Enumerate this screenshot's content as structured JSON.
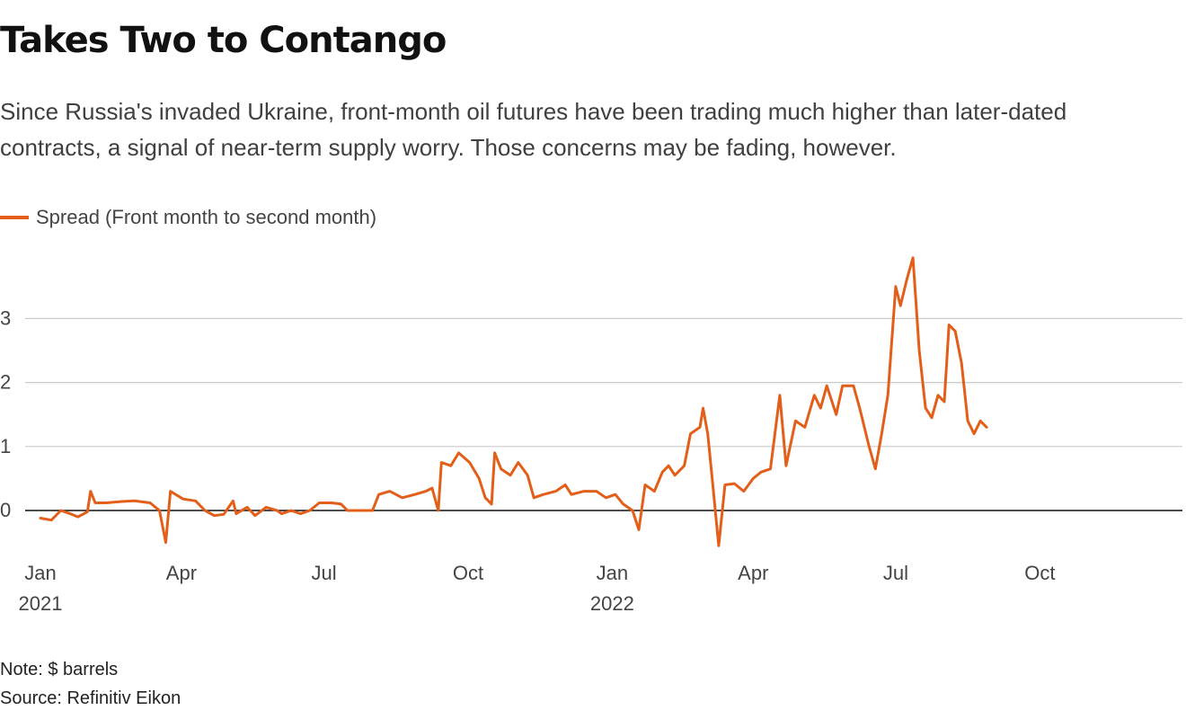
{
  "title": "Takes Two to Contango",
  "subtitle": "Since Russia's invaded Ukraine, front-month oil futures have been trading much higher than later-dated contracts, a signal of near-term supply worry. Those concerns may be fading, however.",
  "note": "Note: $ barrels",
  "source": "Source: Refinitiv Eikon",
  "colors": {
    "line": "#e35f19",
    "grid": "#cccccc",
    "zero": "#111111",
    "text": "#444444"
  },
  "chart_data": {
    "type": "line",
    "title": "Takes Two to Contango",
    "xlabel": "",
    "ylabel": "",
    "ylim": [
      -0.6,
      4.0
    ],
    "xlim": [
      "2021-01-01",
      "2022-12-31"
    ],
    "grid": true,
    "legend_position": "top-left",
    "y_ticks": [
      {
        "value": 0,
        "label": "0"
      },
      {
        "value": 1,
        "label": "1"
      },
      {
        "value": 2,
        "label": "2"
      },
      {
        "value": 3,
        "label": "3"
      }
    ],
    "x_ticks": [
      {
        "date": "2021-01-01",
        "label": "Jan",
        "sublabel": "2021"
      },
      {
        "date": "2021-04-01",
        "label": "Apr",
        "sublabel": ""
      },
      {
        "date": "2021-07-01",
        "label": "Jul",
        "sublabel": ""
      },
      {
        "date": "2021-10-01",
        "label": "Oct",
        "sublabel": ""
      },
      {
        "date": "2022-01-01",
        "label": "Jan",
        "sublabel": "2022"
      },
      {
        "date": "2022-04-01",
        "label": "Apr",
        "sublabel": ""
      },
      {
        "date": "2022-07-01",
        "label": "Jul",
        "sublabel": ""
      },
      {
        "date": "2022-10-01",
        "label": "Oct",
        "sublabel": ""
      }
    ],
    "series": [
      {
        "name": "Spread (Front month to second month)",
        "color": "#e35f19",
        "points": [
          [
            "2021-01-01",
            -0.12
          ],
          [
            "2021-01-08",
            -0.15
          ],
          [
            "2021-01-14",
            0.0
          ],
          [
            "2021-01-20",
            -0.05
          ],
          [
            "2021-01-25",
            -0.1
          ],
          [
            "2021-01-31",
            -0.02
          ],
          [
            "2021-02-02",
            0.3
          ],
          [
            "2021-02-05",
            0.12
          ],
          [
            "2021-02-12",
            0.12
          ],
          [
            "2021-02-22",
            0.14
          ],
          [
            "2021-03-02",
            0.15
          ],
          [
            "2021-03-12",
            0.12
          ],
          [
            "2021-03-18",
            0.0
          ],
          [
            "2021-03-22",
            -0.5
          ],
          [
            "2021-03-25",
            0.3
          ],
          [
            "2021-04-02",
            0.18
          ],
          [
            "2021-04-10",
            0.15
          ],
          [
            "2021-04-16",
            0.0
          ],
          [
            "2021-04-22",
            -0.08
          ],
          [
            "2021-04-28",
            -0.06
          ],
          [
            "2021-05-04",
            0.15
          ],
          [
            "2021-05-06",
            -0.05
          ],
          [
            "2021-05-13",
            0.05
          ],
          [
            "2021-05-18",
            -0.08
          ],
          [
            "2021-05-25",
            0.05
          ],
          [
            "2021-06-01",
            0.0
          ],
          [
            "2021-06-04",
            -0.05
          ],
          [
            "2021-06-10",
            0.0
          ],
          [
            "2021-06-16",
            -0.05
          ],
          [
            "2021-06-22",
            0.0
          ],
          [
            "2021-06-28",
            0.12
          ],
          [
            "2021-07-06",
            0.12
          ],
          [
            "2021-07-12",
            0.1
          ],
          [
            "2021-07-16",
            0.0
          ],
          [
            "2021-07-24",
            0.0
          ],
          [
            "2021-08-01",
            0.0
          ],
          [
            "2021-08-05",
            0.25
          ],
          [
            "2021-08-12",
            0.3
          ],
          [
            "2021-08-20",
            0.2
          ],
          [
            "2021-08-28",
            0.25
          ],
          [
            "2021-09-04",
            0.3
          ],
          [
            "2021-09-08",
            0.35
          ],
          [
            "2021-09-12",
            0.0
          ],
          [
            "2021-09-14",
            0.75
          ],
          [
            "2021-09-20",
            0.7
          ],
          [
            "2021-09-25",
            0.9
          ],
          [
            "2021-10-02",
            0.75
          ],
          [
            "2021-10-08",
            0.5
          ],
          [
            "2021-10-12",
            0.2
          ],
          [
            "2021-10-16",
            0.1
          ],
          [
            "2021-10-18",
            0.9
          ],
          [
            "2021-10-22",
            0.65
          ],
          [
            "2021-10-28",
            0.55
          ],
          [
            "2021-11-02",
            0.75
          ],
          [
            "2021-11-08",
            0.55
          ],
          [
            "2021-11-12",
            0.2
          ],
          [
            "2021-11-18",
            0.25
          ],
          [
            "2021-11-26",
            0.3
          ],
          [
            "2021-12-02",
            0.4
          ],
          [
            "2021-12-06",
            0.25
          ],
          [
            "2021-12-14",
            0.3
          ],
          [
            "2021-12-22",
            0.3
          ],
          [
            "2021-12-28",
            0.2
          ],
          [
            "2022-01-03",
            0.25
          ],
          [
            "2022-01-08",
            0.1
          ],
          [
            "2022-01-14",
            0.0
          ],
          [
            "2022-01-18",
            -0.3
          ],
          [
            "2022-01-22",
            0.4
          ],
          [
            "2022-01-28",
            0.3
          ],
          [
            "2022-02-02",
            0.6
          ],
          [
            "2022-02-06",
            0.7
          ],
          [
            "2022-02-10",
            0.55
          ],
          [
            "2022-02-16",
            0.7
          ],
          [
            "2022-02-20",
            1.2
          ],
          [
            "2022-02-26",
            1.3
          ],
          [
            "2022-02-28",
            1.6
          ],
          [
            "2022-03-03",
            1.2
          ],
          [
            "2022-03-06",
            0.45
          ],
          [
            "2022-03-10",
            -0.55
          ],
          [
            "2022-03-14",
            0.4
          ],
          [
            "2022-03-20",
            0.42
          ],
          [
            "2022-03-26",
            0.3
          ],
          [
            "2022-04-01",
            0.5
          ],
          [
            "2022-04-06",
            0.6
          ],
          [
            "2022-04-12",
            0.65
          ],
          [
            "2022-04-18",
            1.8
          ],
          [
            "2022-04-22",
            0.7
          ],
          [
            "2022-04-28",
            1.4
          ],
          [
            "2022-05-04",
            1.3
          ],
          [
            "2022-05-10",
            1.8
          ],
          [
            "2022-05-14",
            1.6
          ],
          [
            "2022-05-18",
            1.95
          ],
          [
            "2022-05-24",
            1.5
          ],
          [
            "2022-05-28",
            1.95
          ],
          [
            "2022-06-04",
            1.95
          ],
          [
            "2022-06-08",
            1.6
          ],
          [
            "2022-06-14",
            1.0
          ],
          [
            "2022-06-18",
            0.65
          ],
          [
            "2022-06-22",
            1.2
          ],
          [
            "2022-06-26",
            1.8
          ],
          [
            "2022-07-01",
            3.5
          ],
          [
            "2022-07-04",
            3.2
          ],
          [
            "2022-07-08",
            3.6
          ],
          [
            "2022-07-12",
            3.95
          ],
          [
            "2022-07-16",
            2.5
          ],
          [
            "2022-07-20",
            1.6
          ],
          [
            "2022-07-24",
            1.45
          ],
          [
            "2022-07-28",
            1.8
          ],
          [
            "2022-08-01",
            1.7
          ],
          [
            "2022-08-04",
            2.9
          ],
          [
            "2022-08-08",
            2.8
          ],
          [
            "2022-08-12",
            2.3
          ],
          [
            "2022-08-16",
            1.4
          ],
          [
            "2022-08-20",
            1.2
          ],
          [
            "2022-08-24",
            1.4
          ],
          [
            "2022-08-28",
            1.3
          ]
        ]
      }
    ]
  }
}
